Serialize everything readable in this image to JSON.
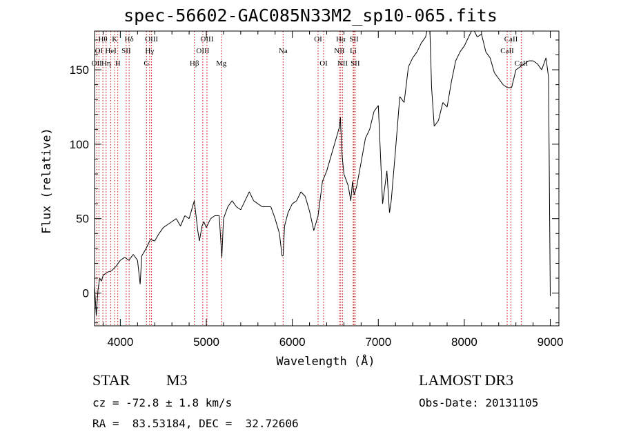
{
  "title": "spec-56602-GAC085N33M2_sp10-065.fits",
  "footer": {
    "class_label": "STAR",
    "subclass": "M3",
    "cz": "cz = -72.8 ± 1.8 km/s",
    "coords": "RA =  83.53184, DEC =  32.72606",
    "survey": "LAMOST DR3",
    "obs_date": "Obs-Date: 20131105"
  },
  "chart_data": {
    "type": "line",
    "title": "spec-56602-GAC085N33M2_sp10-065.fits",
    "xlabel": "Wavelength (Å)",
    "ylabel": "Flux (relative)",
    "xlim": [
      3700,
      9100
    ],
    "ylim": [
      -22,
      176
    ],
    "xticks": [
      4000,
      5000,
      6000,
      7000,
      8000,
      9000
    ],
    "yticks": [
      0,
      50,
      100,
      150
    ],
    "series": [
      {
        "name": "flux",
        "x": [
          3700,
          3720,
          3740,
          3760,
          3780,
          3800,
          3850,
          3900,
          3950,
          4000,
          4050,
          4100,
          4150,
          4200,
          4230,
          4250,
          4300,
          4350,
          4400,
          4450,
          4500,
          4550,
          4600,
          4650,
          4700,
          4750,
          4800,
          4850,
          4860,
          4900,
          4920,
          4950,
          4970,
          5000,
          5050,
          5100,
          5150,
          5180,
          5200,
          5250,
          5300,
          5350,
          5400,
          5450,
          5500,
          5550,
          5600,
          5650,
          5700,
          5750,
          5800,
          5850,
          5880,
          5893,
          5910,
          5950,
          6000,
          6050,
          6100,
          6150,
          6200,
          6250,
          6300,
          6350,
          6400,
          6450,
          6500,
          6550,
          6560,
          6563,
          6580,
          6600,
          6650,
          6680,
          6700,
          6710,
          6720,
          6750,
          6800,
          6850,
          6900,
          6950,
          7000,
          7050,
          7100,
          7130,
          7150,
          7200,
          7250,
          7300,
          7350,
          7400,
          7450,
          7500,
          7550,
          7580,
          7600,
          7620,
          7650,
          7700,
          7750,
          7800,
          7850,
          7900,
          7950,
          8000,
          8050,
          8100,
          8150,
          8200,
          8250,
          8300,
          8350,
          8400,
          8450,
          8500,
          8550,
          8600,
          8650,
          8700,
          8750,
          8800,
          8850,
          8900,
          8950,
          8980,
          9000
        ],
        "values": [
          5,
          -15,
          2,
          10,
          8,
          12,
          14,
          15,
          18,
          22,
          24,
          22,
          26,
          22,
          6,
          25,
          30,
          36,
          35,
          40,
          44,
          46,
          48,
          50,
          45,
          52,
          50,
          60,
          62,
          42,
          35,
          45,
          48,
          44,
          50,
          52,
          52,
          24,
          50,
          58,
          62,
          58,
          56,
          62,
          68,
          62,
          60,
          58,
          58,
          58,
          50,
          40,
          25,
          25,
          45,
          54,
          60,
          62,
          68,
          65,
          55,
          42,
          52,
          75,
          82,
          92,
          102,
          112,
          118,
          112,
          92,
          80,
          72,
          62,
          75,
          70,
          66,
          72,
          88,
          104,
          110,
          122,
          126,
          60,
          82,
          54,
          62,
          96,
          132,
          128,
          152,
          158,
          162,
          168,
          172,
          180,
          176,
          138,
          112,
          116,
          128,
          125,
          142,
          156,
          162,
          166,
          172,
          178,
          172,
          174,
          162,
          158,
          148,
          144,
          140,
          138,
          138,
          150,
          152,
          154,
          156,
          156,
          154,
          150,
          158,
          145,
          -2
        ]
      }
    ],
    "lines": [
      {
        "wl": 3726,
        "row": 2,
        "label": "OII"
      },
      {
        "wl": 3751,
        "row": 1,
        "label": "OI"
      },
      {
        "wl": 3797,
        "row": 0,
        "label": "Hθ"
      },
      {
        "wl": 3835,
        "row": 2,
        "label": "Hη"
      },
      {
        "wl": 3889,
        "row": 1,
        "label": "HeI"
      },
      {
        "wl": 3934,
        "row": 0,
        "label": "K"
      },
      {
        "wl": 3970,
        "row": 2,
        "label": "H"
      },
      {
        "wl": 4068,
        "row": 1,
        "label": "SII"
      },
      {
        "wl": 4102,
        "row": 0,
        "label": "Hδ"
      },
      {
        "wl": 4304,
        "row": 2,
        "label": "G"
      },
      {
        "wl": 4340,
        "row": 1,
        "label": "Hγ"
      },
      {
        "wl": 4363,
        "row": 0,
        "label": "OIII"
      },
      {
        "wl": 4861,
        "row": 2,
        "label": "Hβ"
      },
      {
        "wl": 4959,
        "row": 1,
        "label": "OIII"
      },
      {
        "wl": 5007,
        "row": 0,
        "label": "OIII"
      },
      {
        "wl": 5175,
        "row": 2,
        "label": "Mg"
      },
      {
        "wl": 5893,
        "row": 1,
        "label": "Na"
      },
      {
        "wl": 6300,
        "row": 0,
        "label": "OI"
      },
      {
        "wl": 6364,
        "row": 2,
        "label": "OI"
      },
      {
        "wl": 6548,
        "row": 1,
        "label": "NII"
      },
      {
        "wl": 6563,
        "row": 0,
        "label": "Hα"
      },
      {
        "wl": 6584,
        "row": 2,
        "label": "NII"
      },
      {
        "wl": 6708,
        "row": 1,
        "label": "Li"
      },
      {
        "wl": 6717,
        "row": 0,
        "label": "SII"
      },
      {
        "wl": 6731,
        "row": 2,
        "label": "SII"
      },
      {
        "wl": 8498,
        "row": 1,
        "label": "CaII"
      },
      {
        "wl": 8542,
        "row": 0,
        "label": "CaII"
      },
      {
        "wl": 8662,
        "row": 2,
        "label": "CaII"
      }
    ]
  }
}
